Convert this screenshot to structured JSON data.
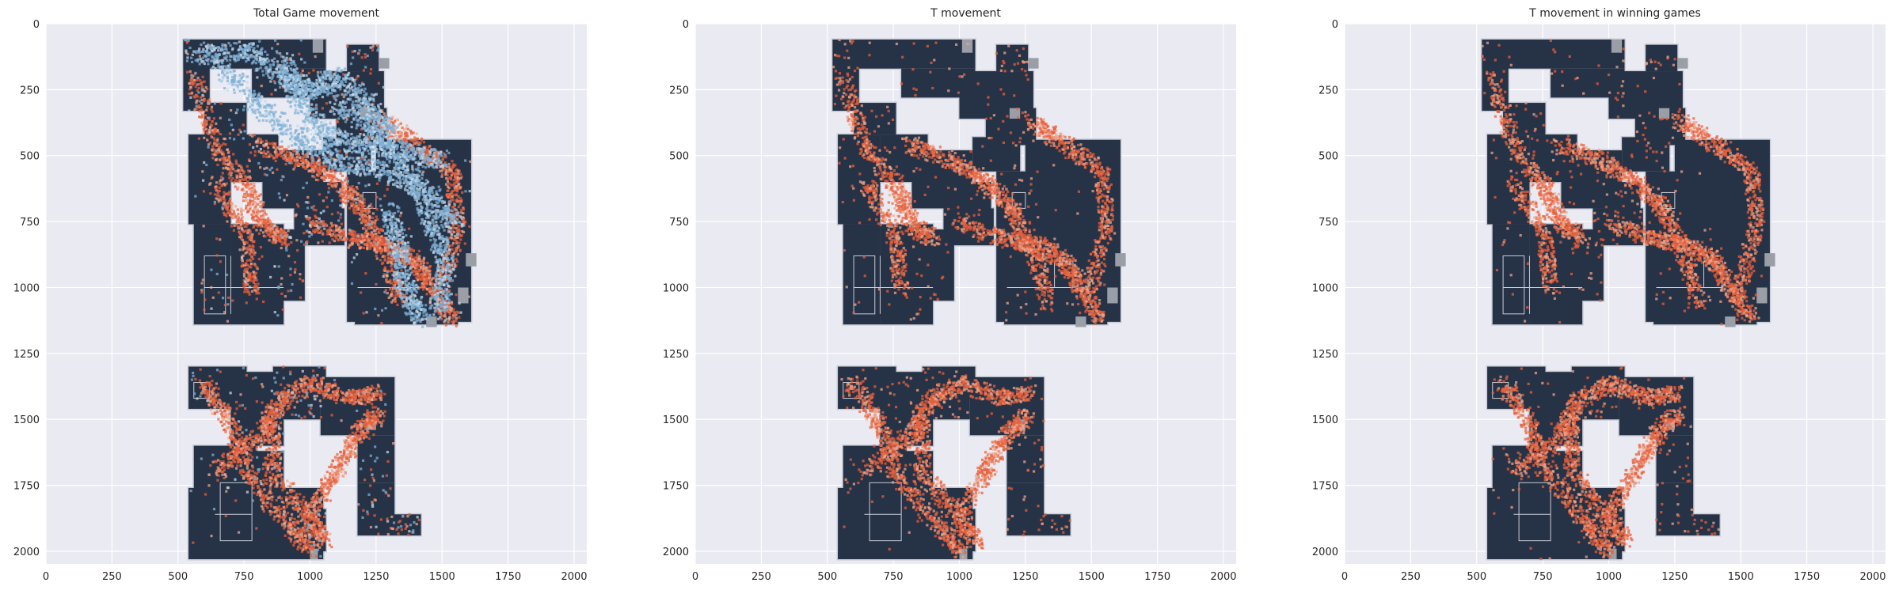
{
  "chart_data": [
    {
      "type": "heatmap",
      "title": "Total Game movement",
      "xlabel": "",
      "ylabel": "",
      "xlim": [
        0,
        2048
      ],
      "ylim": [
        2048,
        0
      ],
      "xticks": [
        0,
        250,
        500,
        750,
        1000,
        1250,
        1500,
        1750,
        2000
      ],
      "yticks": [
        0,
        250,
        500,
        750,
        1000,
        1250,
        1500,
        1750,
        2000
      ],
      "grid": true,
      "background": "radar map image",
      "series": [
        {
          "color": "#e8603c"
        },
        {
          "color": "#7fb0d6"
        }
      ]
    },
    {
      "type": "heatmap",
      "title": "T movement",
      "xlabel": "",
      "ylabel": "",
      "xlim": [
        0,
        2048
      ],
      "ylim": [
        2048,
        0
      ],
      "xticks": [
        0,
        250,
        500,
        750,
        1000,
        1250,
        1500,
        1750,
        2000
      ],
      "yticks": [
        0,
        250,
        500,
        750,
        1000,
        1250,
        1500,
        1750,
        2000
      ],
      "grid": true,
      "background": "radar map image",
      "series": [
        {
          "color": "#e8603c"
        }
      ]
    },
    {
      "type": "heatmap",
      "title": "T movement in winning games",
      "xlabel": "",
      "ylabel": "",
      "xlim": [
        0,
        2048
      ],
      "ylim": [
        2048,
        0
      ],
      "xticks": [
        0,
        250,
        500,
        750,
        1000,
        1250,
        1500,
        1750,
        2000
      ],
      "yticks": [
        0,
        250,
        500,
        750,
        1000,
        1250,
        1500,
        1750,
        2000
      ],
      "grid": true,
      "background": "radar map image",
      "series": [
        {
          "color": "#e8603c"
        }
      ]
    }
  ],
  "colors": {
    "axes_background": "#eaeaf2",
    "grid": "#ffffff",
    "map_dark": "#263246",
    "map_light": "#c8ccd6",
    "map_gray": "#9a9ea6",
    "t_heat": "#e8603c",
    "t_heat_light": "#f0a58a",
    "ct_heat": "#7fb0d6",
    "ct_heat_light": "#c3d9ea",
    "text": "#262626"
  }
}
